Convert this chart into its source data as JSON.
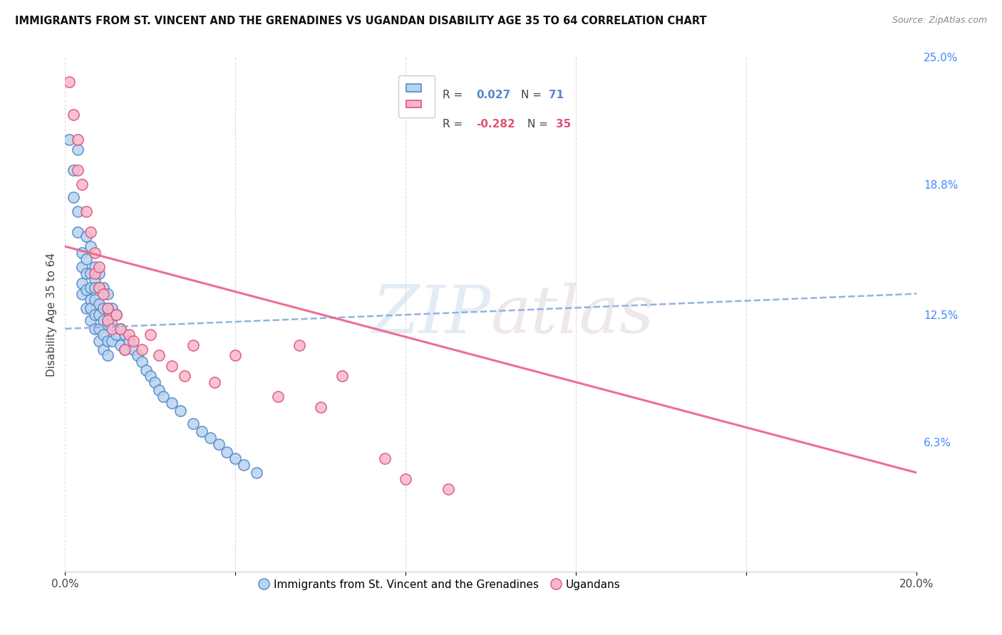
{
  "title": "IMMIGRANTS FROM ST. VINCENT AND THE GRENADINES VS UGANDAN DISABILITY AGE 35 TO 64 CORRELATION CHART",
  "source": "Source: ZipAtlas.com",
  "ylabel": "Disability Age 35 to 64",
  "xlim": [
    0.0,
    0.2
  ],
  "ylim": [
    0.0,
    0.25
  ],
  "legend_blue_r": "0.027",
  "legend_blue_n": "71",
  "legend_pink_r": "-0.282",
  "legend_pink_n": "35",
  "legend_label_blue": "Immigrants from St. Vincent and the Grenadines",
  "legend_label_pink": "Ugandans",
  "watermark_zip": "ZIP",
  "watermark_atlas": "atlas",
  "blue_fill": "#b8d4ee",
  "blue_edge": "#5588cc",
  "pink_fill": "#f8b8cc",
  "pink_edge": "#dd5577",
  "blue_line_color": "#88aadd",
  "pink_line_color": "#ee6688",
  "right_tick_color": "#4488ff",
  "blue_scatter_x": [
    0.001,
    0.002,
    0.002,
    0.003,
    0.003,
    0.003,
    0.004,
    0.004,
    0.004,
    0.004,
    0.005,
    0.005,
    0.005,
    0.005,
    0.005,
    0.006,
    0.006,
    0.006,
    0.006,
    0.006,
    0.006,
    0.007,
    0.007,
    0.007,
    0.007,
    0.007,
    0.007,
    0.008,
    0.008,
    0.008,
    0.008,
    0.008,
    0.008,
    0.009,
    0.009,
    0.009,
    0.009,
    0.009,
    0.01,
    0.01,
    0.01,
    0.01,
    0.01,
    0.011,
    0.011,
    0.011,
    0.012,
    0.012,
    0.013,
    0.013,
    0.014,
    0.014,
    0.015,
    0.016,
    0.017,
    0.018,
    0.019,
    0.02,
    0.021,
    0.022,
    0.023,
    0.025,
    0.027,
    0.03,
    0.032,
    0.034,
    0.036,
    0.038,
    0.04,
    0.042,
    0.045
  ],
  "blue_scatter_y": [
    0.21,
    0.195,
    0.182,
    0.205,
    0.175,
    0.165,
    0.155,
    0.148,
    0.14,
    0.135,
    0.163,
    0.152,
    0.145,
    0.137,
    0.128,
    0.158,
    0.145,
    0.138,
    0.132,
    0.128,
    0.122,
    0.148,
    0.142,
    0.138,
    0.132,
    0.125,
    0.118,
    0.145,
    0.138,
    0.13,
    0.125,
    0.118,
    0.112,
    0.138,
    0.128,
    0.122,
    0.115,
    0.108,
    0.135,
    0.128,
    0.12,
    0.112,
    0.105,
    0.128,
    0.12,
    0.112,
    0.125,
    0.115,
    0.118,
    0.11,
    0.115,
    0.108,
    0.112,
    0.108,
    0.105,
    0.102,
    0.098,
    0.095,
    0.092,
    0.088,
    0.085,
    0.082,
    0.078,
    0.072,
    0.068,
    0.065,
    0.062,
    0.058,
    0.055,
    0.052,
    0.048
  ],
  "pink_scatter_x": [
    0.001,
    0.002,
    0.003,
    0.003,
    0.004,
    0.005,
    0.006,
    0.007,
    0.007,
    0.008,
    0.008,
    0.009,
    0.01,
    0.01,
    0.011,
    0.012,
    0.013,
    0.014,
    0.015,
    0.016,
    0.018,
    0.02,
    0.022,
    0.025,
    0.028,
    0.03,
    0.035,
    0.04,
    0.05,
    0.055,
    0.06,
    0.065,
    0.075,
    0.08,
    0.09
  ],
  "pink_scatter_y": [
    0.238,
    0.222,
    0.21,
    0.195,
    0.188,
    0.175,
    0.165,
    0.155,
    0.145,
    0.148,
    0.138,
    0.135,
    0.128,
    0.122,
    0.118,
    0.125,
    0.118,
    0.108,
    0.115,
    0.112,
    0.108,
    0.115,
    0.105,
    0.1,
    0.095,
    0.11,
    0.092,
    0.105,
    0.085,
    0.11,
    0.08,
    0.095,
    0.055,
    0.045,
    0.04
  ],
  "blue_trend_x": [
    0.0,
    0.2
  ],
  "blue_trend_y": [
    0.118,
    0.135
  ],
  "pink_trend_x": [
    0.0,
    0.2
  ],
  "pink_trend_y": [
    0.158,
    0.048
  ]
}
